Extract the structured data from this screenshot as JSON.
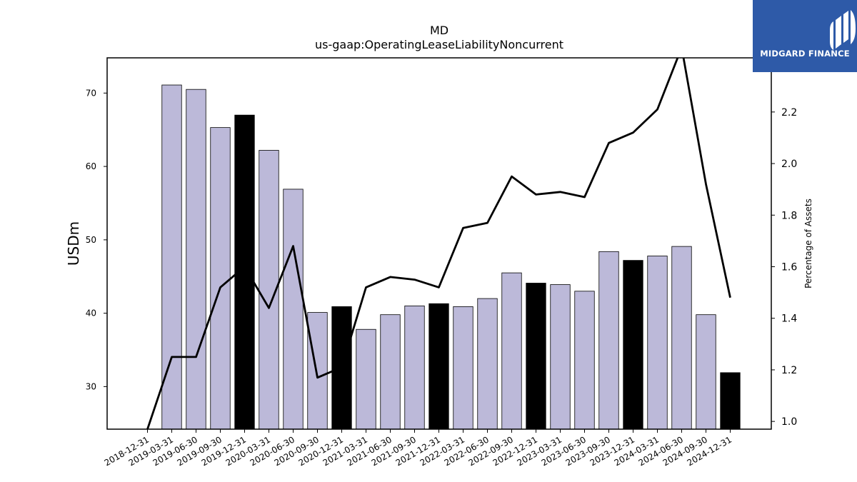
{
  "chart_data": {
    "type": "bar",
    "title": "MD",
    "subtitle": "us-gaap:OperatingLeaseLiabilityNoncurrent",
    "ylabel": "USDm",
    "y2label": "Percentage of Assets",
    "ylim": [
      24.2,
      74.8
    ],
    "y2lim": [
      0.97,
      2.41
    ],
    "yticks": [
      30,
      40,
      50,
      60,
      70
    ],
    "y2ticks": [
      "1.0",
      "1.2",
      "1.4",
      "1.6",
      "1.8",
      "2.0",
      "2.2"
    ],
    "categories": [
      "2018-12-31",
      "2019-03-31",
      "2019-06-30",
      "2019-09-30",
      "2019-12-31",
      "2020-03-31",
      "2020-06-30",
      "2020-09-30",
      "2020-12-31",
      "2021-03-31",
      "2021-06-30",
      "2021-09-30",
      "2021-12-31",
      "2022-03-31",
      "2022-06-30",
      "2022-09-30",
      "2022-12-31",
      "2023-03-31",
      "2023-06-30",
      "2023-09-30",
      "2023-12-31",
      "2024-03-31",
      "2024-06-30",
      "2024-09-30",
      "2024-12-31"
    ],
    "series": [
      {
        "kind": "bar",
        "axis": "left",
        "values": [
          null,
          71.1,
          70.5,
          65.3,
          67.0,
          62.2,
          56.9,
          40.1,
          40.9,
          37.8,
          39.8,
          41.0,
          41.3,
          40.9,
          42.0,
          45.5,
          44.1,
          43.9,
          43.0,
          48.4,
          47.2,
          47.8,
          49.1,
          39.8,
          31.9
        ],
        "highlight_color": "#000000",
        "color": "#bcb9d9",
        "highlighted": [
          "2019-12-31",
          "2020-12-31",
          "2021-12-31",
          "2022-12-31",
          "2023-12-31",
          "2024-12-31"
        ]
      },
      {
        "kind": "line",
        "axis": "right",
        "color": "#000000",
        "values": [
          0.97,
          1.25,
          1.25,
          1.52,
          1.6,
          1.44,
          1.68,
          1.17,
          1.21,
          1.52,
          1.56,
          1.55,
          1.52,
          1.75,
          1.77,
          1.95,
          1.88,
          1.89,
          1.87,
          2.08,
          2.12,
          2.21,
          2.45,
          1.92,
          1.48
        ]
      }
    ],
    "grid": false
  },
  "logo": {
    "text": "MIDGARD FINANCE",
    "color": "#2e5aa8"
  }
}
